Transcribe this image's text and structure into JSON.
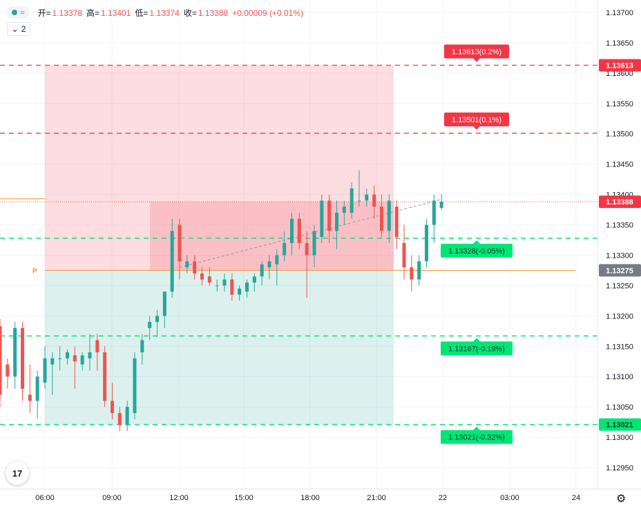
{
  "legend": {
    "dot_color": "#26a69a",
    "wave_icon": "wave-icon",
    "ohlc": [
      {
        "label": "开=",
        "value": "1.13378"
      },
      {
        "label": "高=",
        "value": "1.13401"
      },
      {
        "label": "低=",
        "value": "1.13374"
      },
      {
        "label": "收=",
        "value": "1.13388"
      },
      {
        "label": "",
        "value": "+0.00009 (+0.01%)"
      }
    ]
  },
  "collapse_count": "2",
  "logo_text": "17",
  "settings_icon": "gear-icon",
  "colors": {
    "up": "#26a69a",
    "down": "#ef5350",
    "orange": "#f0932b",
    "green_line": "#00e676"
  },
  "chart_data": {
    "type": "candlestick",
    "title": "",
    "x_ticks": [
      "06:00",
      "09:00",
      "12:00",
      "15:00",
      "18:00",
      "21:00",
      "22",
      "03:00",
      "24"
    ],
    "y_ticks": [
      "1.13700",
      "1.13650",
      "1.13600",
      "1.13550",
      "1.13500",
      "1.13450",
      "1.13400",
      "1.13350",
      "1.13300",
      "1.13250",
      "1.13200",
      "1.13150",
      "1.13100",
      "1.13050",
      "1.13000",
      "1.12950"
    ],
    "ylim": [
      1.1292,
      1.13717
    ],
    "grid": true,
    "candles": [
      {
        "t": "04:00",
        "o": 1.13183,
        "h": 1.13195,
        "l": 1.1305,
        "c": 1.1307
      },
      {
        "t": "04:20",
        "o": 1.1312,
        "h": 1.1313,
        "l": 1.1308,
        "c": 1.131
      },
      {
        "t": "04:40",
        "o": 1.131,
        "h": 1.1319,
        "l": 1.1308,
        "c": 1.1318
      },
      {
        "t": "05:00",
        "o": 1.1318,
        "h": 1.1319,
        "l": 1.1306,
        "c": 1.1308
      },
      {
        "t": "05:20",
        "o": 1.1307,
        "h": 1.1312,
        "l": 1.1304,
        "c": 1.1306
      },
      {
        "t": "05:40",
        "o": 1.1306,
        "h": 1.1311,
        "l": 1.1303,
        "c": 1.131
      },
      {
        "t": "06:00",
        "o": 1.1309,
        "h": 1.1315,
        "l": 1.1308,
        "c": 1.1313
      },
      {
        "t": "06:20",
        "o": 1.1312,
        "h": 1.1314,
        "l": 1.1307,
        "c": 1.1313
      },
      {
        "t": "06:40",
        "o": 1.1313,
        "h": 1.1315,
        "l": 1.1311,
        "c": 1.1313
      },
      {
        "t": "07:00",
        "o": 1.1313,
        "h": 1.13145,
        "l": 1.1312,
        "c": 1.1314
      },
      {
        "t": "07:20",
        "o": 1.13135,
        "h": 1.1315,
        "l": 1.1308,
        "c": 1.13125
      },
      {
        "t": "07:40",
        "o": 1.1312,
        "h": 1.1314,
        "l": 1.1311,
        "c": 1.13135
      },
      {
        "t": "08:00",
        "o": 1.1313,
        "h": 1.1317,
        "l": 1.1311,
        "c": 1.1314
      },
      {
        "t": "08:20",
        "o": 1.1316,
        "h": 1.1317,
        "l": 1.1311,
        "c": 1.1314
      },
      {
        "t": "08:40",
        "o": 1.1314,
        "h": 1.1315,
        "l": 1.1305,
        "c": 1.1306
      },
      {
        "t": "09:00",
        "o": 1.1306,
        "h": 1.1309,
        "l": 1.1303,
        "c": 1.1304
      },
      {
        "t": "09:20",
        "o": 1.1304,
        "h": 1.1305,
        "l": 1.1301,
        "c": 1.1302
      },
      {
        "t": "09:40",
        "o": 1.1302,
        "h": 1.1306,
        "l": 1.1301,
        "c": 1.1305
      },
      {
        "t": "10:00",
        "o": 1.1304,
        "h": 1.1314,
        "l": 1.1303,
        "c": 1.1313
      },
      {
        "t": "10:20",
        "o": 1.1314,
        "h": 1.1317,
        "l": 1.1312,
        "c": 1.1316
      },
      {
        "t": "10:40",
        "o": 1.1318,
        "h": 1.132,
        "l": 1.1316,
        "c": 1.1319
      },
      {
        "t": "11:00",
        "o": 1.1319,
        "h": 1.1321,
        "l": 1.13165,
        "c": 1.132
      },
      {
        "t": "11:20",
        "o": 1.132,
        "h": 1.1324,
        "l": 1.1318,
        "c": 1.1324
      },
      {
        "t": "11:40",
        "o": 1.1324,
        "h": 1.1336,
        "l": 1.1323,
        "c": 1.1334
      },
      {
        "t": "12:00",
        "o": 1.1335,
        "h": 1.1336,
        "l": 1.1326,
        "c": 1.1329
      },
      {
        "t": "12:20",
        "o": 1.1328,
        "h": 1.133,
        "l": 1.1327,
        "c": 1.1329
      },
      {
        "t": "12:40",
        "o": 1.1329,
        "h": 1.133,
        "l": 1.1326,
        "c": 1.1327
      },
      {
        "t": "13:00",
        "o": 1.1327,
        "h": 1.1328,
        "l": 1.1325,
        "c": 1.1326
      },
      {
        "t": "13:20",
        "o": 1.13265,
        "h": 1.1328,
        "l": 1.1325,
        "c": 1.13255
      },
      {
        "t": "13:40",
        "o": 1.1325,
        "h": 1.1326,
        "l": 1.1324,
        "c": 1.1325
      },
      {
        "t": "14:00",
        "o": 1.1325,
        "h": 1.1327,
        "l": 1.1324,
        "c": 1.1326
      },
      {
        "t": "14:20",
        "o": 1.1326,
        "h": 1.1327,
        "l": 1.13225,
        "c": 1.13235
      },
      {
        "t": "14:40",
        "o": 1.13235,
        "h": 1.1325,
        "l": 1.13225,
        "c": 1.13245
      },
      {
        "t": "15:00",
        "o": 1.1324,
        "h": 1.1326,
        "l": 1.1323,
        "c": 1.13255
      },
      {
        "t": "15:20",
        "o": 1.13255,
        "h": 1.1327,
        "l": 1.1324,
        "c": 1.13265
      },
      {
        "t": "15:40",
        "o": 1.13265,
        "h": 1.1329,
        "l": 1.1325,
        "c": 1.13285
      },
      {
        "t": "16:00",
        "o": 1.1328,
        "h": 1.133,
        "l": 1.1326,
        "c": 1.1329
      },
      {
        "t": "16:20",
        "o": 1.13285,
        "h": 1.1331,
        "l": 1.1325,
        "c": 1.133
      },
      {
        "t": "16:40",
        "o": 1.133,
        "h": 1.1334,
        "l": 1.1329,
        "c": 1.1332
      },
      {
        "t": "17:00",
        "o": 1.1332,
        "h": 1.1337,
        "l": 1.133,
        "c": 1.1336
      },
      {
        "t": "17:20",
        "o": 1.1336,
        "h": 1.1337,
        "l": 1.1331,
        "c": 1.1332
      },
      {
        "t": "17:40",
        "o": 1.1332,
        "h": 1.1334,
        "l": 1.1323,
        "c": 1.133
      },
      {
        "t": "18:00",
        "o": 1.133,
        "h": 1.1335,
        "l": 1.1328,
        "c": 1.1334
      },
      {
        "t": "18:20",
        "o": 1.1333,
        "h": 1.134,
        "l": 1.1332,
        "c": 1.1339
      },
      {
        "t": "18:40",
        "o": 1.1339,
        "h": 1.134,
        "l": 1.1332,
        "c": 1.1334
      },
      {
        "t": "19:00",
        "o": 1.1334,
        "h": 1.1339,
        "l": 1.1331,
        "c": 1.1337
      },
      {
        "t": "19:20",
        "o": 1.1337,
        "h": 1.1339,
        "l": 1.1335,
        "c": 1.1338
      },
      {
        "t": "19:40",
        "o": 1.1337,
        "h": 1.1342,
        "l": 1.1336,
        "c": 1.1341
      },
      {
        "t": "20:00",
        "o": 1.1339,
        "h": 1.1344,
        "l": 1.1338,
        "c": 1.1339
      },
      {
        "t": "20:20",
        "o": 1.1339,
        "h": 1.1341,
        "l": 1.1338,
        "c": 1.134
      },
      {
        "t": "20:40",
        "o": 1.134,
        "h": 1.13415,
        "l": 1.1336,
        "c": 1.1338
      },
      {
        "t": "21:00",
        "o": 1.1338,
        "h": 1.134,
        "l": 1.1333,
        "c": 1.1334
      },
      {
        "t": "21:20",
        "o": 1.1334,
        "h": 1.134,
        "l": 1.1332,
        "c": 1.1339
      },
      {
        "t": "21:40",
        "o": 1.1338,
        "h": 1.1339,
        "l": 1.1331,
        "c": 1.1333
      },
      {
        "t": "22:00",
        "o": 1.1332,
        "h": 1.1335,
        "l": 1.1326,
        "c": 1.1328
      },
      {
        "t": "22:20",
        "o": 1.1328,
        "h": 1.133,
        "l": 1.1324,
        "c": 1.1326
      },
      {
        "t": "22:40",
        "o": 1.1326,
        "h": 1.133,
        "l": 1.1325,
        "c": 1.1329
      },
      {
        "t": "23:00",
        "o": 1.1329,
        "h": 1.1336,
        "l": 1.1328,
        "c": 1.1335
      },
      {
        "t": "23:20",
        "o": 1.1335,
        "h": 1.134,
        "l": 1.1332,
        "c": 1.1339
      },
      {
        "t": "23:40",
        "o": 1.13378,
        "h": 1.13401,
        "l": 1.13374,
        "c": 1.13388
      }
    ],
    "position": {
      "entry": 1.13275,
      "stop": 1.13613,
      "target": 1.13021,
      "start": "06:00",
      "end": "02:00"
    },
    "levels": [
      {
        "price": 1.13613,
        "label": "1.13613(0.2%)",
        "color": "#ef5350",
        "axis_label": "1.13613"
      },
      {
        "price": 1.13501,
        "label": "1.13501(0.1%)",
        "color": "#ef5350"
      },
      {
        "price": 1.13328,
        "label": "1.13328(-0.05%)",
        "color": "#00e676"
      },
      {
        "price": 1.13167,
        "label": "1.13167(-0.19%)",
        "color": "#00e676"
      },
      {
        "price": 1.13021,
        "label": "1.13021(-0.32%)",
        "color": "#00e676",
        "axis_label": "1.13021"
      }
    ],
    "entry_label": "1.13275",
    "entry_marker": "P",
    "last_price_label": "1.13388",
    "last_price": 1.13388,
    "prior_level": 1.13393,
    "trend_line": {
      "from": {
        "t": "12:00",
        "p": 1.1328
      },
      "to": {
        "t": "23:40",
        "p": 1.13392
      }
    }
  }
}
